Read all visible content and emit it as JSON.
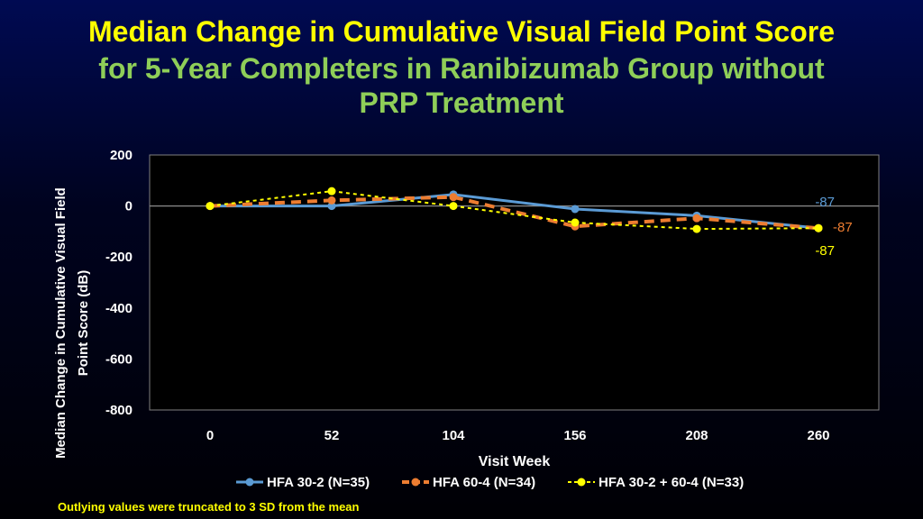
{
  "title": {
    "line1": "Median Change in Cumulative Visual Field Point Score",
    "line2": "for 5-Year Completers in Ranibizumab Group without",
    "line3": "PRP Treatment"
  },
  "footnote": "Outlying values were truncated to 3 SD from the mean",
  "colors": {
    "title_yellow": "#ffff00",
    "title_green": "#8fce58",
    "plot_background": "#000000",
    "text": "#ffffff"
  },
  "chart_data": {
    "type": "line",
    "x": [
      0,
      52,
      104,
      156,
      208,
      260
    ],
    "xlabel": "Visit Week",
    "ylabel": "Median Change in Cumulative Visual Field Point Score (dB)",
    "ylabel_lines": [
      "Median Change in Cumulative Visual Field",
      "Point Score (dB)"
    ],
    "ylim": [
      -800,
      200
    ],
    "yticks": [
      200,
      0,
      -200,
      -400,
      -600,
      -800
    ],
    "xticks": [
      0,
      52,
      104,
      156,
      208,
      260
    ],
    "grid": false,
    "zero_line": true,
    "legend_position": "bottom",
    "series": [
      {
        "name": "HFA 30-2 (N=35)",
        "values": [
          0,
          0,
          45,
          -12,
          -38,
          -87
        ],
        "color": "#5b9bd5",
        "style": "solid",
        "end_label": "-87"
      },
      {
        "name": "HFA 60-4 (N=34)",
        "values": [
          0,
          22,
          35,
          -80,
          -48,
          -87
        ],
        "color": "#ed7d31",
        "style": "dashed",
        "end_label": "-87"
      },
      {
        "name": "HFA 30-2 + 60-4 (N=33)",
        "values": [
          0,
          58,
          0,
          -65,
          -90,
          -87
        ],
        "color": "#ffff00",
        "style": "dotted",
        "end_label": "-87"
      }
    ]
  }
}
